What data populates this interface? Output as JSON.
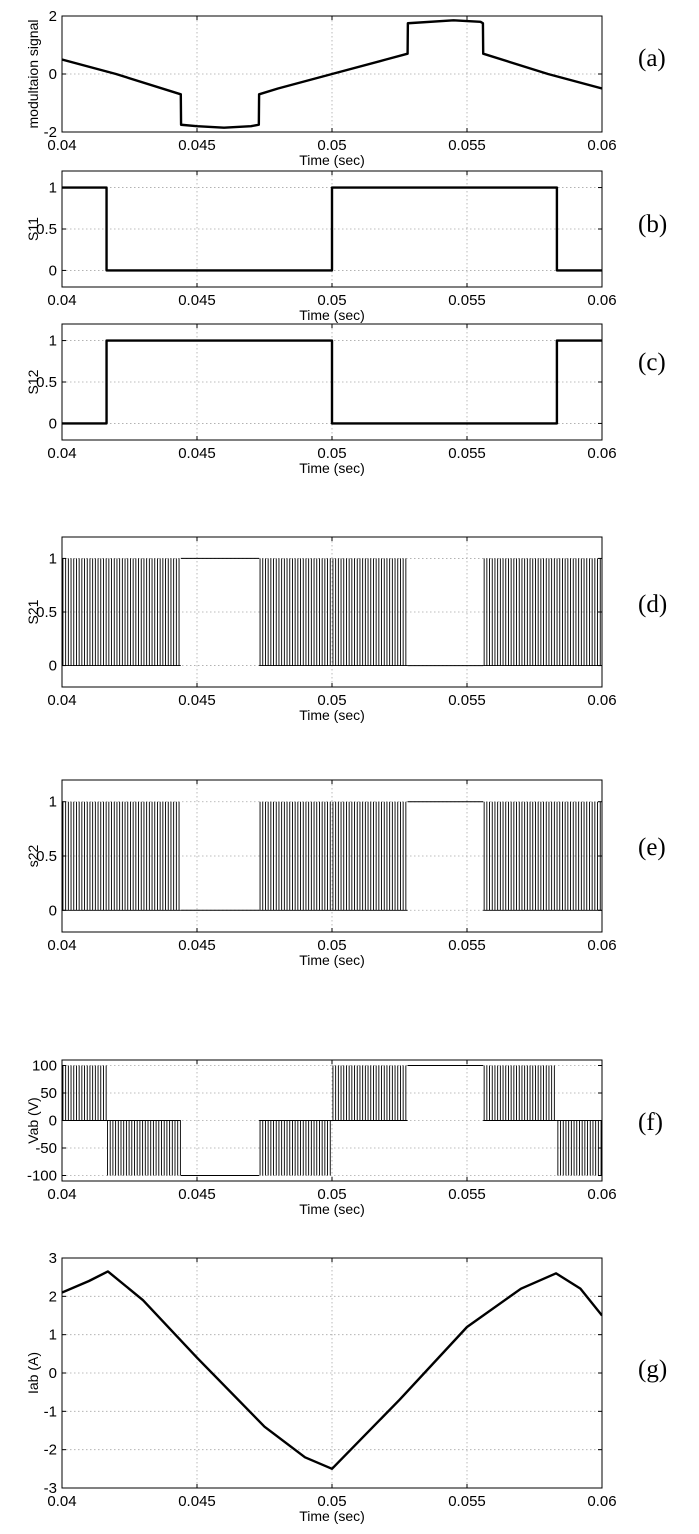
{
  "chart_data": [
    {
      "panel_label": "(a)",
      "type": "line",
      "title": "",
      "xlabel": "Time (sec)",
      "ylabel": "modultaion signal",
      "xlim": [
        0.04,
        0.06
      ],
      "ylim": [
        -2,
        2
      ],
      "xticks": [
        "0.04",
        "0.045",
        "0.05",
        "0.055",
        "0.06"
      ],
      "yticks": [
        "-2",
        "0",
        "2"
      ],
      "ytick_values": [
        -2,
        0,
        2
      ],
      "grid": true,
      "series": [
        {
          "x": [
            0.04,
            0.042,
            0.0444,
            0.04441,
            0.045,
            0.046,
            0.047,
            0.04729,
            0.0473,
            0.048,
            0.05,
            0.052,
            0.0528,
            0.05281,
            0.0545,
            0.0555,
            0.05559,
            0.0556,
            0.058,
            0.06
          ],
          "y": [
            0.5,
            0.0,
            -0.7,
            -1.75,
            -1.8,
            -1.85,
            -1.8,
            -1.75,
            -0.7,
            -0.5,
            0.0,
            0.5,
            0.7,
            1.75,
            1.85,
            1.8,
            1.75,
            0.7,
            0.0,
            -0.5
          ]
        }
      ]
    },
    {
      "panel_label": "(b)",
      "type": "line",
      "title": "",
      "xlabel": "Time (sec)",
      "ylabel": "S11",
      "xlim": [
        0.04,
        0.06
      ],
      "ylim": [
        -0.2,
        1.2
      ],
      "xticks": [
        "0.04",
        "0.045",
        "0.05",
        "0.055",
        "0.06"
      ],
      "yticks": [
        "0",
        "0.5",
        "1"
      ],
      "ytick_values": [
        0,
        0.5,
        1
      ],
      "grid": true,
      "series": [
        {
          "x": [
            0.04,
            0.04165,
            0.04165,
            0.05,
            0.05,
            0.05833,
            0.05833,
            0.06
          ],
          "y": [
            1,
            1,
            0,
            0,
            1,
            1,
            0,
            0
          ]
        }
      ]
    },
    {
      "panel_label": "(c)",
      "type": "line",
      "title": "",
      "xlabel": "Time (sec)",
      "ylabel": "S12",
      "xlim": [
        0.04,
        0.06
      ],
      "ylim": [
        -0.2,
        1.2
      ],
      "xticks": [
        "0.04",
        "0.045",
        "0.05",
        "0.055",
        "0.06"
      ],
      "yticks": [
        "0",
        "0.5",
        "1"
      ],
      "ytick_values": [
        0,
        0.5,
        1
      ],
      "grid": true,
      "series": [
        {
          "x": [
            0.04,
            0.04165,
            0.04165,
            0.05,
            0.05,
            0.05833,
            0.05833,
            0.06
          ],
          "y": [
            0,
            0,
            1,
            1,
            0,
            0,
            1,
            1
          ]
        }
      ]
    },
    {
      "panel_label": "(d)",
      "type": "line",
      "title": "",
      "xlabel": "Time (sec)",
      "ylabel": "S21",
      "xlim": [
        0.04,
        0.06
      ],
      "ylim": [
        -0.2,
        1.2
      ],
      "xticks": [
        "0.04",
        "0.045",
        "0.05",
        "0.055",
        "0.06"
      ],
      "yticks": [
        "0",
        "0.5",
        "1"
      ],
      "ytick_values": [
        0,
        0.5,
        1
      ],
      "grid": true,
      "pwm": true,
      "pwm_bursts": [
        {
          "x": [
            0.04,
            0.0444
          ],
          "from": 0,
          "to": 1
        },
        {
          "x": [
            0.0473,
            0.0528
          ],
          "from": 0,
          "to": 1
        },
        {
          "x": [
            0.0556,
            0.06
          ],
          "from": 0,
          "to": 1
        }
      ],
      "flat_segments": [
        {
          "x": [
            0.0444,
            0.0473
          ],
          "y": 1
        },
        {
          "x": [
            0.0528,
            0.0556
          ],
          "y": 0
        }
      ]
    },
    {
      "panel_label": "(e)",
      "type": "line",
      "title": "",
      "xlabel": "Time (sec)",
      "ylabel": "s22",
      "xlim": [
        0.04,
        0.06
      ],
      "ylim": [
        -0.2,
        1.2
      ],
      "xticks": [
        "0.04",
        "0.045",
        "0.05",
        "0.055",
        "0.06"
      ],
      "yticks": [
        "0",
        "0.5",
        "1"
      ],
      "ytick_values": [
        0,
        0.5,
        1
      ],
      "grid": true,
      "pwm": true,
      "pwm_bursts": [
        {
          "x": [
            0.04,
            0.0444
          ],
          "from": 0,
          "to": 1
        },
        {
          "x": [
            0.0473,
            0.0528
          ],
          "from": 0,
          "to": 1
        },
        {
          "x": [
            0.0556,
            0.06
          ],
          "from": 0,
          "to": 1
        }
      ],
      "flat_segments": [
        {
          "x": [
            0.0444,
            0.0473
          ],
          "y": 0
        },
        {
          "x": [
            0.0528,
            0.0556
          ],
          "y": 1
        }
      ]
    },
    {
      "panel_label": "(f)",
      "type": "line",
      "title": "",
      "xlabel": "Time (sec)",
      "ylabel": "Vab (V)",
      "xlim": [
        0.04,
        0.06
      ],
      "ylim": [
        -110,
        110
      ],
      "xticks": [
        "0.04",
        "0.045",
        "0.05",
        "0.055",
        "0.06"
      ],
      "yticks": [
        "-100",
        "-50",
        "0",
        "50",
        "100"
      ],
      "ytick_values": [
        -100,
        -50,
        0,
        50,
        100
      ],
      "grid": true,
      "pwm": true,
      "pwm_bursts": [
        {
          "x": [
            0.04,
            0.04165
          ],
          "from": 0,
          "to": 100
        },
        {
          "x": [
            0.04165,
            0.0444
          ],
          "from": 0,
          "to": -100
        },
        {
          "x": [
            0.0473,
            0.05
          ],
          "from": 0,
          "to": -100
        },
        {
          "x": [
            0.05,
            0.0528
          ],
          "from": 0,
          "to": 100
        },
        {
          "x": [
            0.0556,
            0.05833
          ],
          "from": 0,
          "to": 100
        },
        {
          "x": [
            0.05833,
            0.06
          ],
          "from": 0,
          "to": -100
        }
      ],
      "flat_segments": [
        {
          "x": [
            0.0444,
            0.0473
          ],
          "y": -100
        },
        {
          "x": [
            0.0528,
            0.0556
          ],
          "y": 100
        }
      ]
    },
    {
      "panel_label": "(g)",
      "type": "line",
      "title": "",
      "xlabel": "Time (sec)",
      "ylabel": "Iab (A)",
      "xlim": [
        0.04,
        0.06
      ],
      "ylim": [
        -3,
        3
      ],
      "xticks": [
        "0.04",
        "0.045",
        "0.05",
        "0.055",
        "0.06"
      ],
      "yticks": [
        "-3",
        "-2",
        "-1",
        "0",
        "1",
        "2",
        "3"
      ],
      "ytick_values": [
        -3,
        -2,
        -1,
        0,
        1,
        2,
        3
      ],
      "grid": true,
      "series": [
        {
          "x": [
            0.04,
            0.041,
            0.0417,
            0.043,
            0.045,
            0.0475,
            0.049,
            0.05,
            0.0525,
            0.055,
            0.057,
            0.0583,
            0.0592,
            0.06
          ],
          "y": [
            2.1,
            2.4,
            2.65,
            1.9,
            0.4,
            -1.4,
            -2.2,
            -2.5,
            -0.7,
            1.2,
            2.2,
            2.6,
            2.2,
            1.5
          ]
        }
      ]
    }
  ]
}
